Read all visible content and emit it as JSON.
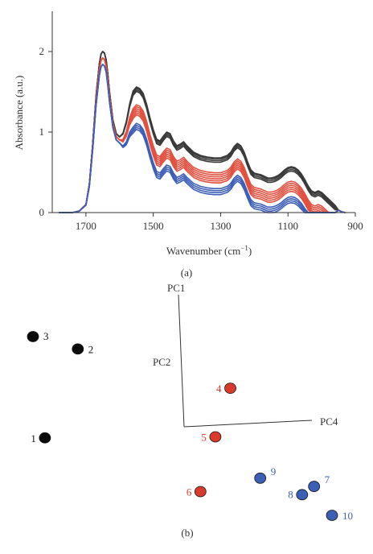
{
  "chart_data": [
    {
      "type": "line",
      "panel_label": "(a)",
      "xlabel": "Wavenumber (cm",
      "xlabel_sup": "−1",
      "xlabel_end": ")",
      "ylabel": "Absorbance (a.u.)",
      "xlim": [
        1800,
        900
      ],
      "ylim": [
        0,
        2.5
      ],
      "x_ticks": [
        {
          "v": 1700,
          "label": "1700"
        },
        {
          "v": 1500,
          "label": "1500"
        },
        {
          "v": 1300,
          "label": "1300"
        },
        {
          "v": 1100,
          "label": "1100"
        },
        {
          "v": 900,
          "label": "900"
        }
      ],
      "y_ticks": [
        {
          "v": 0,
          "label": "0"
        },
        {
          "v": 1,
          "label": "1"
        },
        {
          "v": 2,
          "label": "2"
        }
      ],
      "colors": {
        "black": "#3a3a3a",
        "red": "#e2503f",
        "blue": "#3d5fb8"
      },
      "x": [
        1780,
        1760,
        1740,
        1720,
        1700,
        1690,
        1680,
        1670,
        1660,
        1655,
        1650,
        1645,
        1640,
        1635,
        1630,
        1620,
        1610,
        1600,
        1590,
        1580,
        1570,
        1560,
        1550,
        1540,
        1530,
        1520,
        1510,
        1500,
        1490,
        1480,
        1470,
        1460,
        1450,
        1440,
        1430,
        1420,
        1410,
        1400,
        1380,
        1360,
        1340,
        1320,
        1300,
        1280,
        1270,
        1260,
        1250,
        1240,
        1230,
        1220,
        1210,
        1200,
        1190,
        1180,
        1170,
        1160,
        1150,
        1140,
        1130,
        1120,
        1110,
        1100,
        1090,
        1080,
        1070,
        1060,
        1050,
        1040,
        1030,
        1020,
        1010,
        1000,
        990,
        980,
        970,
        960,
        950,
        940,
        930
      ],
      "base": [
        0,
        0,
        0,
        0.02,
        0.1,
        0.35,
        0.85,
        1.45,
        1.85,
        1.97,
        2.0,
        1.98,
        1.9,
        1.72,
        1.5,
        1.15,
        0.98,
        0.94,
        0.98,
        1.12,
        1.33,
        1.48,
        1.53,
        1.51,
        1.45,
        1.32,
        1.15,
        1.0,
        0.88,
        0.86,
        0.92,
        0.97,
        0.95,
        0.86,
        0.8,
        0.82,
        0.85,
        0.8,
        0.72,
        0.68,
        0.66,
        0.65,
        0.65,
        0.68,
        0.72,
        0.79,
        0.83,
        0.8,
        0.72,
        0.6,
        0.5,
        0.46,
        0.45,
        0.44,
        0.42,
        0.4,
        0.4,
        0.41,
        0.43,
        0.46,
        0.5,
        0.53,
        0.54,
        0.53,
        0.5,
        0.45,
        0.38,
        0.3,
        0.24,
        0.22,
        0.24,
        0.22,
        0.18,
        0.14,
        0.1,
        0.06,
        0.03,
        0.01,
        0
      ],
      "series": [
        {
          "group": "black",
          "a": 1.0,
          "b": 0.03
        },
        {
          "group": "black",
          "a": 1.0,
          "b": 0.015
        },
        {
          "group": "black",
          "a": 1.0,
          "b": -0.005
        },
        {
          "group": "black",
          "a": 1.0,
          "b": -0.025
        },
        {
          "group": "red",
          "a": 0.96,
          "b": -0.13
        },
        {
          "group": "red",
          "a": 0.96,
          "b": -0.155
        },
        {
          "group": "red",
          "a": 0.96,
          "b": -0.18
        },
        {
          "group": "red",
          "a": 0.96,
          "b": -0.205
        },
        {
          "group": "red",
          "a": 0.96,
          "b": -0.23
        },
        {
          "group": "red",
          "a": 0.96,
          "b": -0.255
        },
        {
          "group": "blue",
          "a": 0.92,
          "b": -0.3
        },
        {
          "group": "blue",
          "a": 0.92,
          "b": -0.325
        },
        {
          "group": "blue",
          "a": 0.92,
          "b": -0.35
        },
        {
          "group": "blue",
          "a": 0.92,
          "b": -0.375
        }
      ]
    },
    {
      "type": "scatter",
      "panel_label": "(b)",
      "axis_labels": {
        "pc1": "PC1",
        "pc2": "PC2",
        "pc4": "PC4"
      },
      "colors": {
        "black": "#0a0a0a",
        "red": "#d93a2b",
        "blue": "#3a5fb5"
      },
      "points": [
        {
          "label": "1",
          "group": "black",
          "x": 0.04,
          "y": -0.48
        },
        {
          "label": "2",
          "group": "black",
          "x": 0.15,
          "y": 0.38
        },
        {
          "label": "3",
          "group": "black",
          "x": 0.0,
          "y": 0.5
        },
        {
          "label": "4",
          "group": "red",
          "x": 0.66,
          "y": 0.0
        },
        {
          "label": "5",
          "group": "red",
          "x": 0.61,
          "y": -0.47
        },
        {
          "label": "6",
          "group": "red",
          "x": 0.56,
          "y": -1.0
        },
        {
          "label": "7",
          "group": "blue",
          "x": 0.94,
          "y": -0.95
        },
        {
          "label": "8",
          "group": "blue",
          "x": 0.9,
          "y": -1.03
        },
        {
          "label": "9",
          "group": "blue",
          "x": 0.76,
          "y": -0.87
        },
        {
          "label": "10",
          "group": "blue",
          "x": 1.0,
          "y": -1.23
        }
      ]
    }
  ]
}
